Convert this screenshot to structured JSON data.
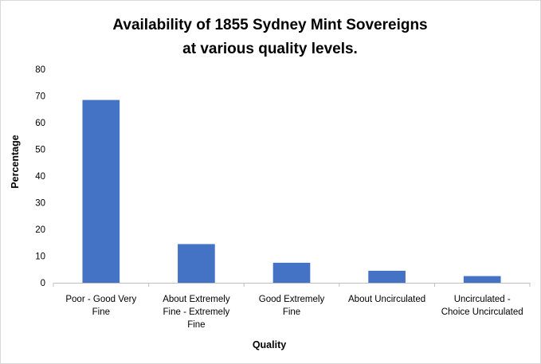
{
  "chart_data": {
    "type": "bar",
    "title": [
      "Availability of 1855 Sydney Mint Sovereigns",
      "at various quality levels."
    ],
    "xlabel": "Quality",
    "ylabel": "Percentage",
    "categories": [
      [
        "Poor - Good Very",
        "Fine"
      ],
      [
        "About Extremely",
        "Fine - Extremely",
        "Fine"
      ],
      [
        "Good Extremely",
        "Fine"
      ],
      [
        "About Uncirculated"
      ],
      [
        "Uncirculated -",
        "Choice Uncirculated"
      ]
    ],
    "values": [
      68.5,
      14.5,
      7.5,
      4.5,
      2.5
    ],
    "ylim": [
      0,
      80
    ],
    "yticks": [
      0,
      10,
      20,
      30,
      40,
      50,
      60,
      70,
      80
    ],
    "grid": false,
    "legend": "none",
    "bar_color": "#4472c4"
  }
}
